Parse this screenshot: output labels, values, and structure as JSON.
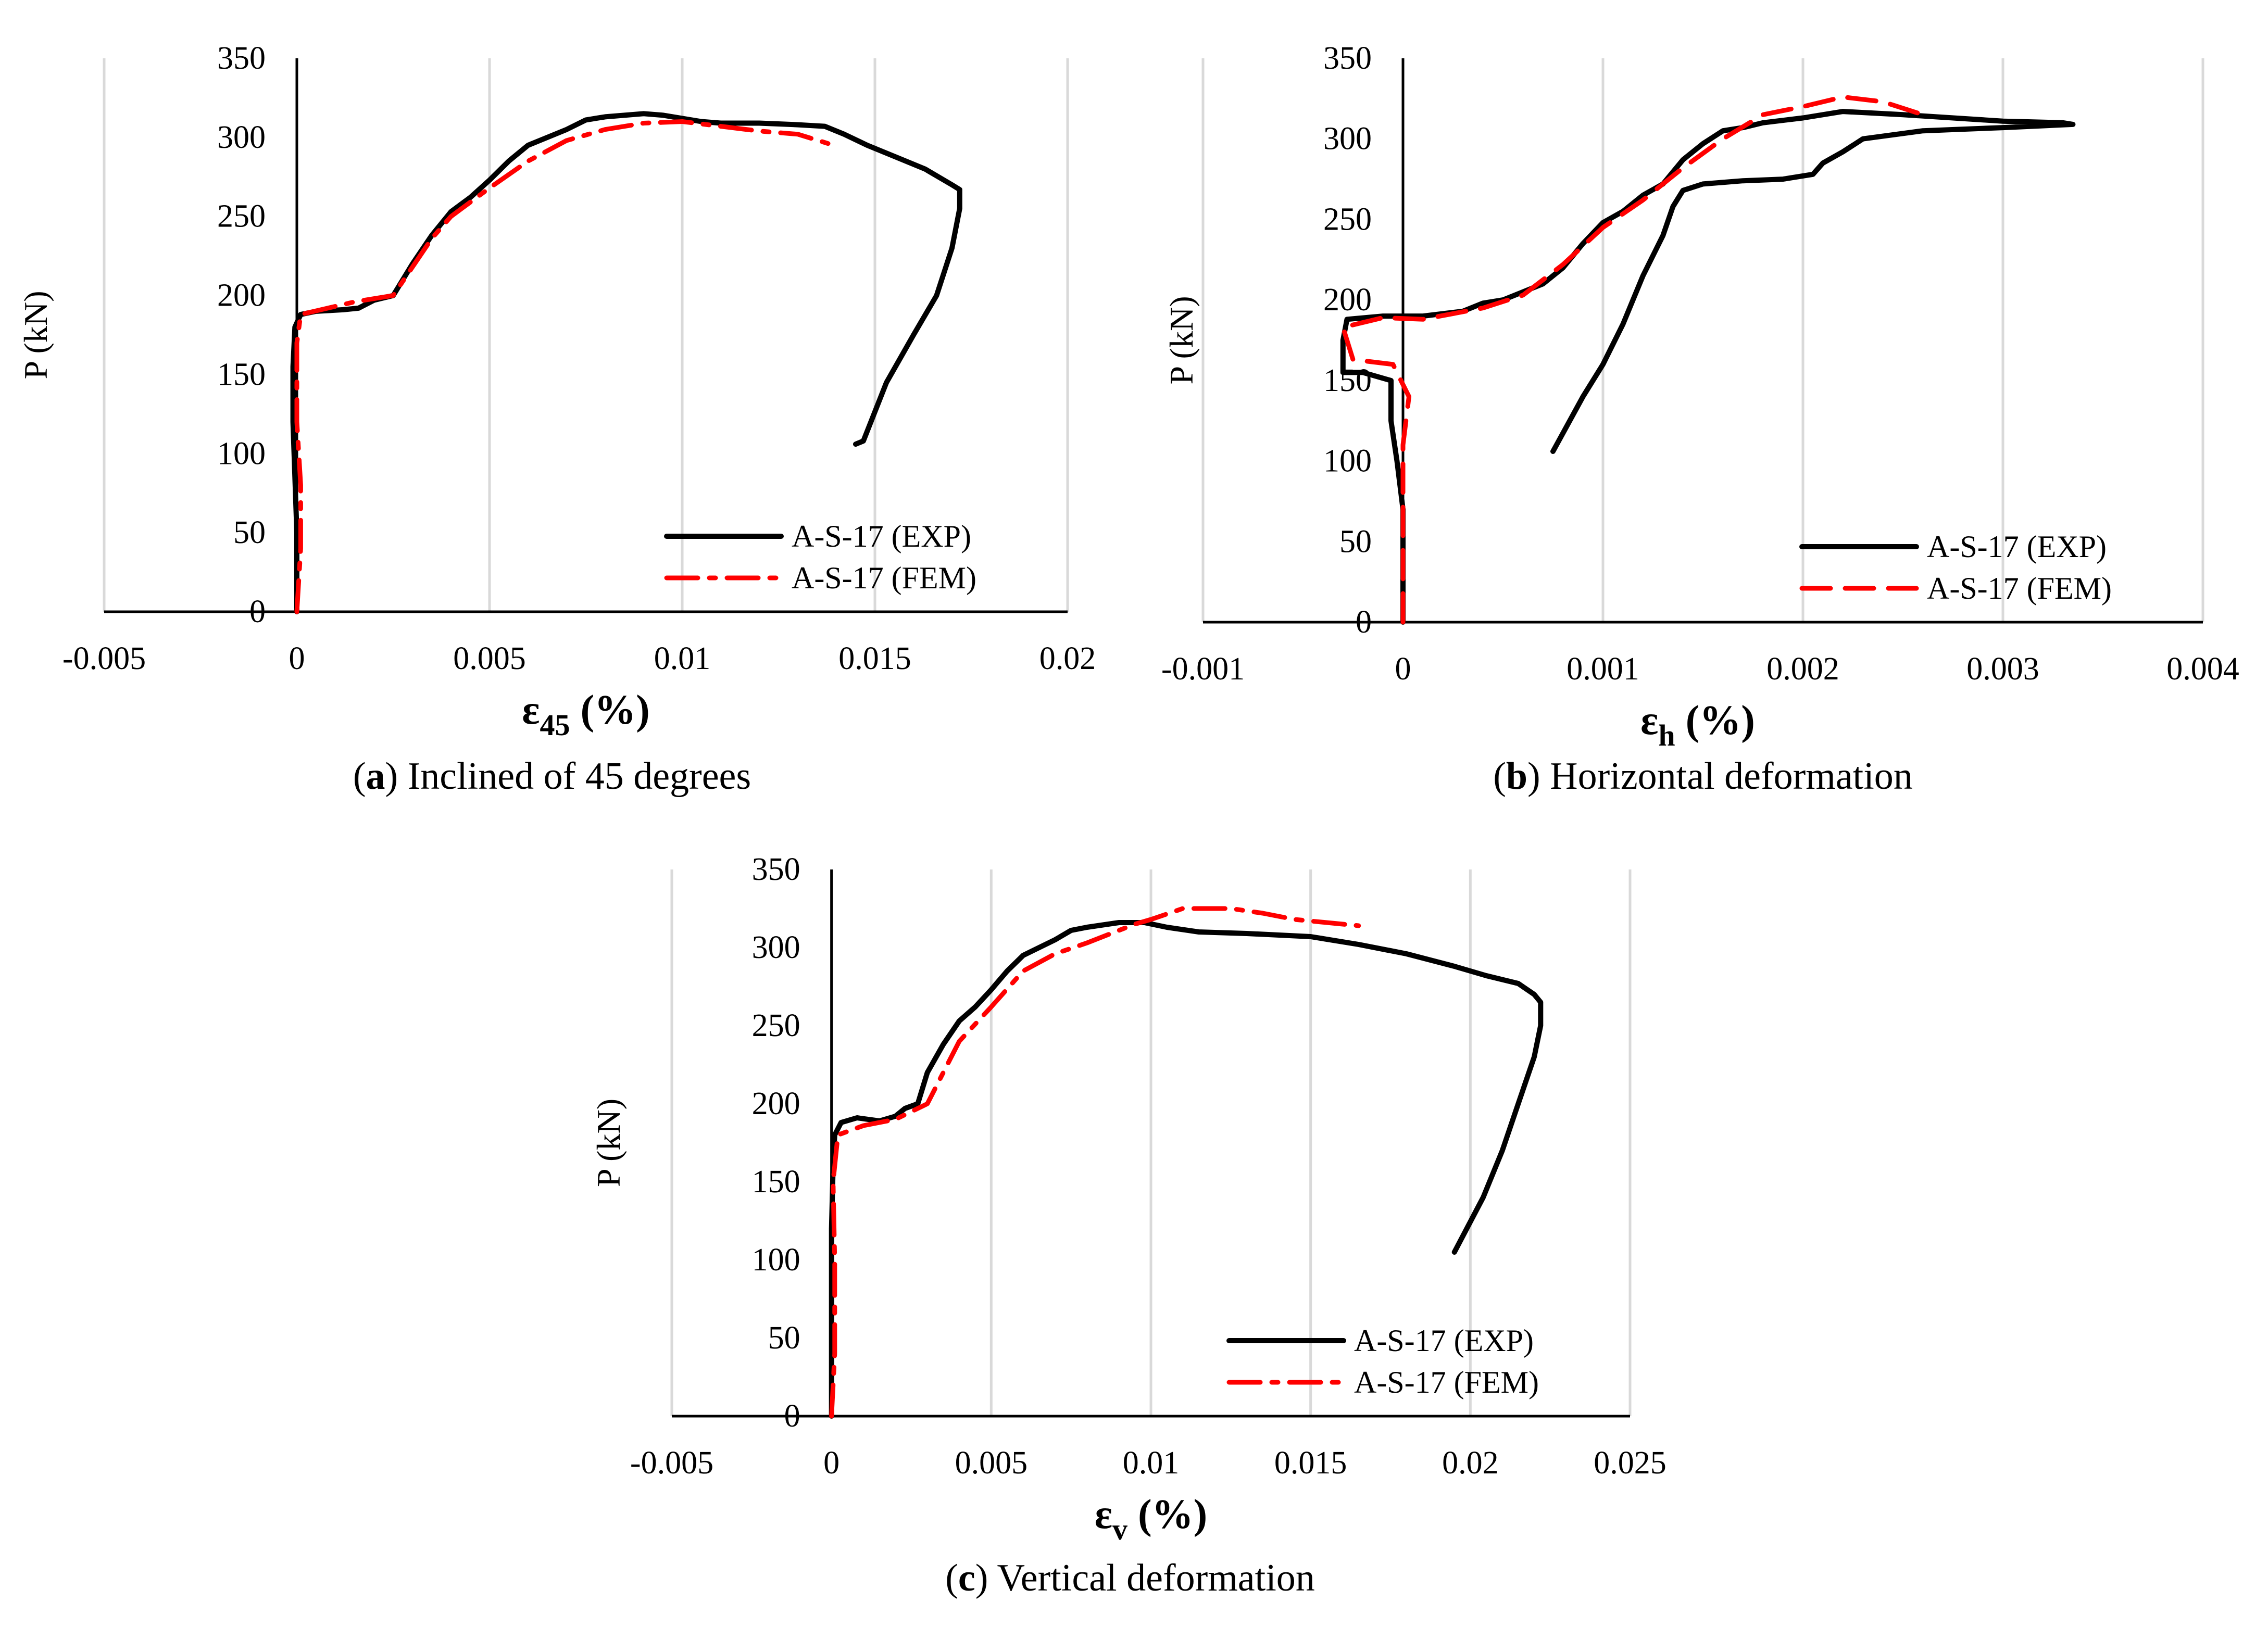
{
  "chart_data": [
    {
      "type": "line",
      "panel": "a",
      "caption_letter": "a",
      "caption_text": "Inclined of 45 degrees",
      "ylabel": "P (kN)",
      "xlabel_main": "ε",
      "xlabel_sub": "45",
      "xlabel_unit": " (%)",
      "xlim": [
        -0.005,
        0.02
      ],
      "ylim": [
        0,
        350
      ],
      "xticks": [
        -0.005,
        0,
        0.005,
        0.01,
        0.015,
        0.02
      ],
      "xtick_labels": [
        "-0.005",
        "0",
        "0.005",
        "0.01",
        "0.015",
        "0.02"
      ],
      "yticks": [
        0,
        50,
        100,
        150,
        200,
        250,
        300,
        350
      ],
      "ytick_labels": [
        "0",
        "50",
        "100",
        "150",
        "200",
        "250",
        "300",
        "350"
      ],
      "grid": "vertical",
      "legend_position": "bottom-right",
      "series": [
        {
          "name": "A-S-17 (EXP)",
          "style": "solid",
          "color": "#000000",
          "points": [
            [
              0,
              0
            ],
            [
              0,
              50
            ],
            [
              -0.0001,
              120
            ],
            [
              -0.0001,
              155
            ],
            [
              -5e-05,
              180
            ],
            [
              0.0001,
              188
            ],
            [
              0.0005,
              190
            ],
            [
              0.0012,
              191
            ],
            [
              0.0016,
              192
            ],
            [
              0.002,
              197
            ],
            [
              0.0025,
              200
            ],
            [
              0.003,
              220
            ],
            [
              0.0035,
              238
            ],
            [
              0.004,
              253
            ],
            [
              0.0045,
              262
            ],
            [
              0.005,
              273
            ],
            [
              0.0055,
              285
            ],
            [
              0.006,
              295
            ],
            [
              0.0065,
              300
            ],
            [
              0.007,
              305
            ],
            [
              0.0075,
              311
            ],
            [
              0.008,
              313
            ],
            [
              0.009,
              315
            ],
            [
              0.0095,
              314
            ],
            [
              0.01,
              312
            ],
            [
              0.0105,
              310
            ],
            [
              0.011,
              309
            ],
            [
              0.012,
              309
            ],
            [
              0.013,
              308
            ],
            [
              0.0137,
              307
            ],
            [
              0.0142,
              302
            ],
            [
              0.0148,
              295
            ],
            [
              0.0155,
              288
            ],
            [
              0.0163,
              280
            ],
            [
              0.017,
              270
            ],
            [
              0.0172,
              267
            ],
            [
              0.0172,
              255
            ],
            [
              0.017,
              230
            ],
            [
              0.0166,
              200
            ],
            [
              0.016,
              175
            ],
            [
              0.0153,
              145
            ],
            [
              0.0147,
              108
            ],
            [
              0.0145,
              106
            ]
          ]
        },
        {
          "name": "A-S-17 (FEM)",
          "style": "dashdot",
          "color": "#ff0000",
          "points": [
            [
              0,
              0
            ],
            [
              0.0001,
              40
            ],
            [
              0.0001,
              80
            ],
            [
              0,
              120
            ],
            [
              0,
              170
            ],
            [
              0.0001,
              188
            ],
            [
              0.0008,
              192
            ],
            [
              0.0015,
              196
            ],
            [
              0.0025,
              200
            ],
            [
              0.003,
              218
            ],
            [
              0.0035,
              236
            ],
            [
              0.004,
              250
            ],
            [
              0.005,
              268
            ],
            [
              0.006,
              285
            ],
            [
              0.007,
              298
            ],
            [
              0.008,
              305
            ],
            [
              0.009,
              309
            ],
            [
              0.01,
              310
            ],
            [
              0.011,
              307
            ],
            [
              0.012,
              304
            ],
            [
              0.013,
              302
            ],
            [
              0.0138,
              296
            ]
          ]
        }
      ]
    },
    {
      "type": "line",
      "panel": "b",
      "caption_letter": "b",
      "caption_text": "Horizontal deformation",
      "ylabel": "P (kN)",
      "xlabel_main": "ε",
      "xlabel_sub": "h",
      "xlabel_unit": " (%)",
      "xlim": [
        -0.001,
        0.004
      ],
      "ylim": [
        0,
        350
      ],
      "xticks": [
        -0.001,
        0,
        0.001,
        0.002,
        0.003,
        0.004
      ],
      "xtick_labels": [
        "-0.001",
        "0",
        "0.001",
        "0.002",
        "0.003",
        "0.004"
      ],
      "yticks": [
        0,
        50,
        100,
        150,
        200,
        250,
        300,
        350
      ],
      "ytick_labels": [
        "0",
        "50",
        "100",
        "150",
        "200",
        "250",
        "300",
        "350"
      ],
      "grid": "vertical",
      "legend_position": "bottom-right",
      "series": [
        {
          "name": "A-S-17 (EXP)",
          "style": "solid",
          "color": "#000000",
          "points": [
            [
              0,
              0
            ],
            [
              0,
              40
            ],
            [
              0,
              70
            ],
            [
              -3e-05,
              100
            ],
            [
              -6e-05,
              125
            ],
            [
              -6e-05,
              150
            ],
            [
              -0.0002,
              155
            ],
            [
              -0.0003,
              155
            ],
            [
              -0.0003,
              175
            ],
            [
              -0.00028,
              188
            ],
            [
              -0.0001,
              190
            ],
            [
              0.0001,
              190
            ],
            [
              0.0003,
              193
            ],
            [
              0.0004,
              198
            ],
            [
              0.0005,
              200
            ],
            [
              0.0007,
              210
            ],
            [
              0.0008,
              220
            ],
            [
              0.0009,
              235
            ],
            [
              0.001,
              248
            ],
            [
              0.0011,
              255
            ],
            [
              0.0012,
              265
            ],
            [
              0.0013,
              272
            ],
            [
              0.0014,
              287
            ],
            [
              0.0015,
              297
            ],
            [
              0.0016,
              305
            ],
            [
              0.0017,
              307
            ],
            [
              0.0018,
              310
            ],
            [
              0.002,
              313
            ],
            [
              0.0022,
              317
            ],
            [
              0.0025,
              315
            ],
            [
              0.003,
              311
            ],
            [
              0.0033,
              310
            ],
            [
              0.00335,
              309
            ],
            [
              0.003,
              307
            ],
            [
              0.0026,
              305
            ],
            [
              0.0023,
              300
            ],
            [
              0.0022,
              292
            ],
            [
              0.0021,
              285
            ],
            [
              0.00205,
              278
            ],
            [
              0.0019,
              275
            ],
            [
              0.0017,
              274
            ],
            [
              0.0015,
              272
            ],
            [
              0.0014,
              268
            ],
            [
              0.00135,
              258
            ],
            [
              0.0013,
              240
            ],
            [
              0.0012,
              215
            ],
            [
              0.0011,
              185
            ],
            [
              0.001,
              160
            ],
            [
              0.0009,
              140
            ],
            [
              0.00075,
              106
            ]
          ]
        },
        {
          "name": "A-S-17 (FEM)",
          "style": "dashed",
          "color": "#ff0000",
          "points": [
            [
              0,
              0
            ],
            [
              0,
              60
            ],
            [
              0,
              110
            ],
            [
              3e-05,
              140
            ],
            [
              -5e-05,
              160
            ],
            [
              -0.00025,
              163
            ],
            [
              -0.0003,
              183
            ],
            [
              -0.0001,
              189
            ],
            [
              0.0001,
              188
            ],
            [
              0.0004,
              195
            ],
            [
              0.0006,
              203
            ],
            [
              0.0008,
              222
            ],
            [
              0.001,
              245
            ],
            [
              0.0012,
              262
            ],
            [
              0.0014,
              282
            ],
            [
              0.0016,
              300
            ],
            [
              0.0018,
              315
            ],
            [
              0.002,
              320
            ],
            [
              0.0022,
              326
            ],
            [
              0.0024,
              323
            ],
            [
              0.0026,
              315
            ]
          ]
        }
      ]
    },
    {
      "type": "line",
      "panel": "c",
      "caption_letter": "c",
      "caption_text": "Vertical deformation",
      "ylabel": "P (kN)",
      "xlabel_main": "ε",
      "xlabel_sub": "v",
      "xlabel_unit": " (%)",
      "xlim": [
        -0.005,
        0.025
      ],
      "ylim": [
        0,
        350
      ],
      "xticks": [
        -0.005,
        0,
        0.005,
        0.01,
        0.015,
        0.02,
        0.025
      ],
      "xtick_labels": [
        "-0.005",
        "0",
        "0.005",
        "0.01",
        "0.015",
        "0.02",
        "0.025"
      ],
      "yticks": [
        0,
        50,
        100,
        150,
        200,
        250,
        300,
        350
      ],
      "ytick_labels": [
        "0",
        "50",
        "100",
        "150",
        "200",
        "250",
        "300",
        "350"
      ],
      "grid": "vertical",
      "legend_position": "bottom-right",
      "series": [
        {
          "name": "A-S-17 (EXP)",
          "style": "solid",
          "color": "#000000",
          "points": [
            [
              0,
              0
            ],
            [
              0,
              60
            ],
            [
              0,
              120
            ],
            [
              5e-05,
              160
            ],
            [
              0.0001,
              180
            ],
            [
              0.0003,
              188
            ],
            [
              0.0008,
              191
            ],
            [
              0.0015,
              189
            ],
            [
              0.002,
              192
            ],
            [
              0.0023,
              197
            ],
            [
              0.0027,
              200
            ],
            [
              0.003,
              220
            ],
            [
              0.0035,
              238
            ],
            [
              0.004,
              253
            ],
            [
              0.0045,
              262
            ],
            [
              0.005,
              273
            ],
            [
              0.0055,
              285
            ],
            [
              0.006,
              295
            ],
            [
              0.0065,
              300
            ],
            [
              0.007,
              305
            ],
            [
              0.0075,
              311
            ],
            [
              0.008,
              313
            ],
            [
              0.009,
              316
            ],
            [
              0.0098,
              316
            ],
            [
              0.0105,
              313
            ],
            [
              0.0115,
              310
            ],
            [
              0.013,
              309
            ],
            [
              0.015,
              307
            ],
            [
              0.0165,
              302
            ],
            [
              0.018,
              296
            ],
            [
              0.0195,
              288
            ],
            [
              0.0205,
              282
            ],
            [
              0.0215,
              277
            ],
            [
              0.022,
              270
            ],
            [
              0.0222,
              265
            ],
            [
              0.0222,
              250
            ],
            [
              0.022,
              230
            ],
            [
              0.0215,
              200
            ],
            [
              0.021,
              170
            ],
            [
              0.0204,
              140
            ],
            [
              0.0195,
              105
            ]
          ]
        },
        {
          "name": "A-S-17 (FEM)",
          "style": "dashdot",
          "color": "#ff0000",
          "points": [
            [
              0,
              0
            ],
            [
              0.0001,
              40
            ],
            [
              0.0001,
              100
            ],
            [
              5e-05,
              150
            ],
            [
              0.0002,
              180
            ],
            [
              0.001,
              186
            ],
            [
              0.002,
              190
            ],
            [
              0.003,
              200
            ],
            [
              0.0035,
              220
            ],
            [
              0.004,
              240
            ],
            [
              0.005,
              262
            ],
            [
              0.006,
              285
            ],
            [
              0.007,
              296
            ],
            [
              0.008,
              303
            ],
            [
              0.0095,
              315
            ],
            [
              0.01,
              318
            ],
            [
              0.011,
              325
            ],
            [
              0.0125,
              325
            ],
            [
              0.0135,
              322
            ],
            [
              0.0145,
              318
            ],
            [
              0.0165,
              314
            ]
          ]
        }
      ]
    }
  ]
}
